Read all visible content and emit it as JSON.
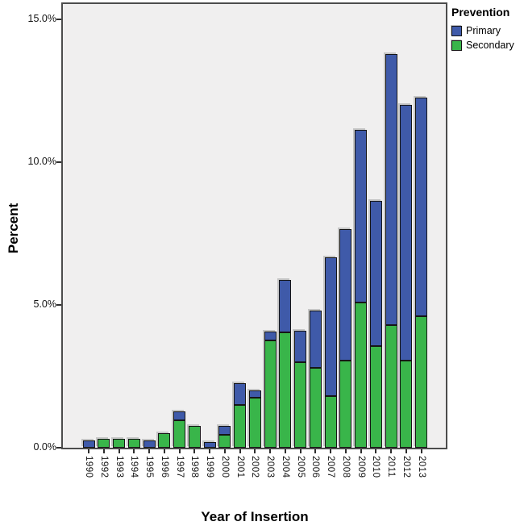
{
  "chart_data": {
    "type": "bar",
    "stacked": true,
    "xlabel": "Year of Insertion",
    "ylabel": "Percent",
    "categories": [
      "1990",
      "1992",
      "1993",
      "1994",
      "1995",
      "1996",
      "1997",
      "1998",
      "1999",
      "2000",
      "2001",
      "2002",
      "2003",
      "2004",
      "2005",
      "2006",
      "2007",
      "2008",
      "2009",
      "2010",
      "2011",
      "2012",
      "2013"
    ],
    "series": [
      {
        "name": "Primary",
        "color": "#3F5AA9",
        "values": [
          0.25,
          0,
          0,
          0,
          0.25,
          0,
          0.3,
          0,
          0.2,
          0.3,
          0.75,
          0.25,
          0.3,
          1.85,
          1.1,
          2.0,
          4.85,
          4.6,
          6.05,
          5.1,
          9.5,
          8.95,
          7.65
        ]
      },
      {
        "name": "Secondary",
        "color": "#39B54A",
        "values": [
          0,
          0.3,
          0.3,
          0.3,
          0,
          0.5,
          0.95,
          0.75,
          0,
          0.45,
          1.5,
          1.75,
          3.75,
          4.05,
          3.0,
          2.8,
          1.8,
          3.05,
          5.1,
          3.55,
          4.3,
          3.05,
          4.6
        ]
      }
    ],
    "ylim": [
      0,
      15.55
    ],
    "yticks": [
      {
        "value": 0,
        "label": "0.0%"
      },
      {
        "value": 5,
        "label": "5.0%"
      },
      {
        "value": 10,
        "label": "10.0%"
      },
      {
        "value": 15,
        "label": "15.0%"
      }
    ],
    "grid": false,
    "plot_background": "#f0efef",
    "legend": {
      "position": "top-right-outside",
      "title": "Prevention",
      "items": [
        {
          "label": "Primary",
          "color": "#3F5AA9"
        },
        {
          "label": "Secondary",
          "color": "#39B54A"
        }
      ]
    }
  }
}
